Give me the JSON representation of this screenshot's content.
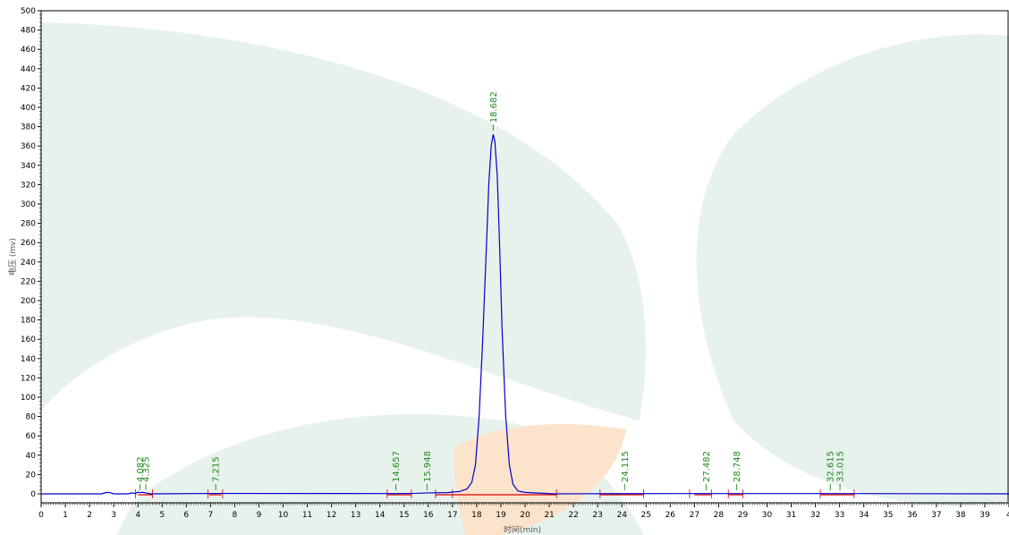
{
  "chart_data": {
    "type": "line",
    "title": "",
    "xlabel": "时间(min)",
    "ylabel": "电压 (mv)",
    "xlim": [
      0,
      40
    ],
    "ylim": [
      0,
      500
    ],
    "x_ticks": [
      "0",
      "1",
      "2",
      "3",
      "4",
      "5",
      "6",
      "7",
      "8",
      "9",
      "10",
      "11",
      "12",
      "13",
      "14",
      "15",
      "16",
      "17",
      "18",
      "19",
      "20",
      "21",
      "22",
      "23",
      "24",
      "25",
      "26",
      "27",
      "28",
      "29",
      "30",
      "31",
      "32",
      "33",
      "34",
      "35",
      "36",
      "37",
      "38",
      "39",
      "4"
    ],
    "y_ticks": [
      "0",
      "20",
      "40",
      "60",
      "80",
      "100",
      "120",
      "140",
      "160",
      "180",
      "200",
      "220",
      "240",
      "260",
      "280",
      "300",
      "320",
      "340",
      "360",
      "380",
      "400",
      "420",
      "440",
      "460",
      "480",
      "500"
    ],
    "series": [
      {
        "color": "#0000cc",
        "x": [
          0,
          2.5,
          2.7,
          2.85,
          3.0,
          3.6,
          3.75,
          3.9,
          4.0,
          4.08,
          4.2,
          4.33,
          4.5,
          7.2,
          14.6,
          15.5,
          16.0,
          16.8,
          17.3,
          17.6,
          17.8,
          17.95,
          18.1,
          18.25,
          18.4,
          18.5,
          18.6,
          18.682,
          18.75,
          18.85,
          18.95,
          19.05,
          19.2,
          19.35,
          19.5,
          19.7,
          20.0,
          20.5,
          21.2,
          24.1,
          27.5,
          28.7,
          32.6,
          33.0,
          40
        ],
        "y": [
          0,
          0,
          1.5,
          1.2,
          0,
          0,
          1.0,
          0.4,
          1.8,
          1.2,
          1.6,
          1.0,
          0,
          0.4,
          0.3,
          0.5,
          1.0,
          1.3,
          2.5,
          5,
          12,
          30,
          80,
          160,
          255,
          320,
          360,
          372,
          365,
          330,
          255,
          170,
          80,
          30,
          10,
          3,
          1.5,
          0.8,
          0,
          0.2,
          0.3,
          0.3,
          0.3,
          0.3,
          0
        ]
      }
    ],
    "peaks": [
      {
        "time": 4.082,
        "label": "4.082"
      },
      {
        "time": 4.325,
        "label": "4.325"
      },
      {
        "time": 7.215,
        "label": "7.215"
      },
      {
        "time": 14.657,
        "label": "14.657"
      },
      {
        "time": 15.948,
        "label": "15.948"
      },
      {
        "time": 18.682,
        "label": "18.682",
        "height": 372
      },
      {
        "time": 24.115,
        "label": "24.115"
      },
      {
        "time": 27.482,
        "label": "27.482"
      },
      {
        "time": 28.748,
        "label": "28.748"
      },
      {
        "time": 32.615,
        "label": "32.615"
      },
      {
        "time": 33.015,
        "label": "33.015"
      }
    ],
    "integration_marks": [
      3.9,
      4.6,
      6.9,
      7.5,
      14.3,
      15.3,
      16.3,
      17.0,
      21.3,
      23.1,
      24.9,
      26.8,
      27.7,
      28.4,
      29.0,
      32.2,
      33.6
    ],
    "baseline_segments": [
      [
        4.0,
        4.6
      ],
      [
        6.95,
        7.45
      ],
      [
        14.3,
        15.3
      ],
      [
        16.3,
        21.3
      ],
      [
        23.1,
        24.9
      ],
      [
        27.0,
        27.7
      ],
      [
        28.4,
        29.0
      ],
      [
        32.2,
        33.6
      ]
    ],
    "grid": false,
    "legend": "none",
    "colors": {
      "signal": "#0000cc",
      "peak_label": "#1a8a1a",
      "baseline": "#dd0000",
      "watermark_green": "#e8f2ec",
      "watermark_orange": "#fbe3cc"
    }
  }
}
